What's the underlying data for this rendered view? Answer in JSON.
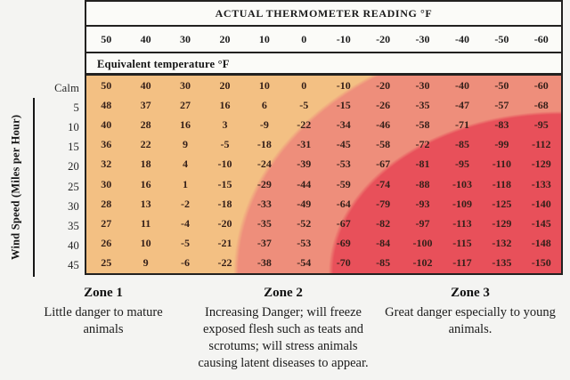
{
  "chart_data": {
    "type": "table",
    "title": "ACTUAL THERMOMETER READING °F",
    "subtitle": "Equivalent temperature °F",
    "y_axis_label": "Wind Speed (Miles per Hour)",
    "columns": [
      "50",
      "40",
      "30",
      "20",
      "10",
      "0",
      "-10",
      "-20",
      "-30",
      "-40",
      "-50",
      "-60"
    ],
    "rows": [
      {
        "label": "Calm",
        "values": [
          "50",
          "40",
          "30",
          "20",
          "10",
          "0",
          "-10",
          "-20",
          "-30",
          "-40",
          "-50",
          "-60"
        ]
      },
      {
        "label": "5",
        "values": [
          "48",
          "37",
          "27",
          "16",
          "6",
          "-5",
          "-15",
          "-26",
          "-35",
          "-47",
          "-57",
          "-68"
        ]
      },
      {
        "label": "10",
        "values": [
          "40",
          "28",
          "16",
          "3",
          "-9",
          "-22",
          "-34",
          "-46",
          "-58",
          "-71",
          "-83",
          "-95"
        ]
      },
      {
        "label": "15",
        "values": [
          "36",
          "22",
          "9",
          "-5",
          "-18",
          "-31",
          "-45",
          "-58",
          "-72",
          "-85",
          "-99",
          "-112"
        ]
      },
      {
        "label": "20",
        "values": [
          "32",
          "18",
          "4",
          "-10",
          "-24",
          "-39",
          "-53",
          "-67",
          "-81",
          "-95",
          "-110",
          "-129"
        ]
      },
      {
        "label": "25",
        "values": [
          "30",
          "16",
          "1",
          "-15",
          "-29",
          "-44",
          "-59",
          "-74",
          "-88",
          "-103",
          "-118",
          "-133"
        ]
      },
      {
        "label": "30",
        "values": [
          "28",
          "13",
          "-2",
          "-18",
          "-33",
          "-49",
          "-64",
          "-79",
          "-93",
          "-109",
          "-125",
          "-140"
        ]
      },
      {
        "label": "35",
        "values": [
          "27",
          "11",
          "-4",
          "-20",
          "-35",
          "-52",
          "-67",
          "-82",
          "-97",
          "-113",
          "-129",
          "-145"
        ]
      },
      {
        "label": "40",
        "values": [
          "26",
          "10",
          "-5",
          "-21",
          "-37",
          "-53",
          "-69",
          "-84",
          "-100",
          "-115",
          "-132",
          "-148"
        ]
      },
      {
        "label": "45",
        "values": [
          "25",
          "9",
          "-6",
          "-22",
          "-38",
          "-54",
          "-70",
          "-85",
          "-102",
          "-117",
          "-135",
          "-150"
        ]
      }
    ],
    "zone_colors": {
      "zone1": "#f3c083",
      "zone2": "#ee8e7b",
      "zone3": "#e8505a"
    }
  },
  "zones": [
    {
      "name": "Zone 1",
      "description": "Little danger to mature animals"
    },
    {
      "name": "Zone 2",
      "description": "Increasing Danger; will freeze exposed flesh such as teats and scrotums; will stress animals causing latent diseases to appear."
    },
    {
      "name": "Zone 3",
      "description": "Great danger especially to young animals."
    }
  ]
}
